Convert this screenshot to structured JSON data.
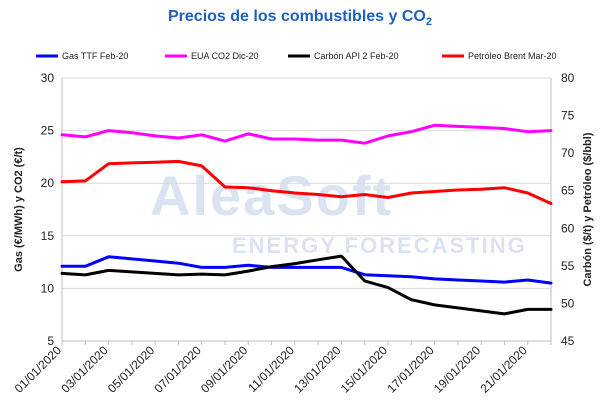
{
  "title_main": "Precios de los combustibles y CO",
  "title_sub": "2",
  "colors": {
    "title": "#1f5fbf",
    "grid": "#d9d9d9",
    "watermark": "#dbe3f2"
  },
  "watermark": {
    "brand": "AleaSoft",
    "tagline": "ENERGY FORECASTING"
  },
  "chart_data": {
    "type": "line",
    "x": [
      "01/01/2020",
      "02/01/2020",
      "03/01/2020",
      "04/01/2020",
      "05/01/2020",
      "06/01/2020",
      "07/01/2020",
      "08/01/2020",
      "09/01/2020",
      "10/01/2020",
      "11/01/2020",
      "12/01/2020",
      "13/01/2020",
      "14/01/2020",
      "15/01/2020",
      "16/01/2020",
      "17/01/2020",
      "18/01/2020",
      "19/01/2020",
      "20/01/2020",
      "21/01/2020",
      "22/01/2020"
    ],
    "x_tick_labels": [
      "01/01/2020",
      "03/01/2020",
      "05/01/2020",
      "07/01/2020",
      "09/01/2020",
      "11/01/2020",
      "13/01/2020",
      "15/01/2020",
      "17/01/2020",
      "19/01/2020",
      "21/01/2020"
    ],
    "y_left": {
      "label": "Gas (€/MWh) y CO2 (€/t)",
      "lim": [
        5,
        30
      ],
      "ticks": [
        5,
        10,
        15,
        20,
        25,
        30
      ]
    },
    "y_right": {
      "label": "Carbón ($/t) y Petróleo ($/bbl)",
      "lim": [
        45,
        80
      ],
      "ticks": [
        45,
        50,
        55,
        60,
        65,
        70,
        75,
        80
      ]
    },
    "grid": "horizontal",
    "legend_position": "top",
    "series": [
      {
        "name": "Gas TTF Feb-20",
        "axis": "left",
        "color": "#0000ff",
        "values": [
          12.1,
          12.1,
          13.0,
          12.8,
          12.6,
          12.4,
          12.0,
          12.0,
          12.2,
          12.0,
          12.0,
          12.0,
          12.0,
          11.3,
          11.2,
          11.1,
          10.9,
          10.8,
          10.7,
          10.6,
          10.8,
          10.5
        ]
      },
      {
        "name": "EUA CO2 Dic-20",
        "axis": "left",
        "color": "#ff00ff",
        "values": [
          24.6,
          24.4,
          25.0,
          24.8,
          24.5,
          24.3,
          24.6,
          24.0,
          24.7,
          24.2,
          24.2,
          24.1,
          24.1,
          23.8,
          24.5,
          24.9,
          25.5,
          25.4,
          25.3,
          25.2,
          24.9,
          25.0
        ]
      },
      {
        "name": "Carbón API 2 Feb-20",
        "axis": "right",
        "color": "#000000",
        "values": [
          54.0,
          53.8,
          54.4,
          54.2,
          54.0,
          53.8,
          53.9,
          53.8,
          54.3,
          54.9,
          55.3,
          55.8,
          56.3,
          53.0,
          52.1,
          50.5,
          49.8,
          49.4,
          49.0,
          48.6,
          49.2,
          49.2
        ]
      },
      {
        "name": "Petróleo Brent Mar-20",
        "axis": "right",
        "color": "#ff0000",
        "values": [
          66.2,
          66.3,
          68.6,
          68.7,
          68.8,
          68.9,
          68.3,
          65.5,
          65.4,
          65.0,
          64.7,
          64.5,
          64.2,
          64.5,
          64.1,
          64.7,
          64.9,
          65.1,
          65.2,
          65.4,
          64.7,
          63.3
        ]
      }
    ]
  }
}
